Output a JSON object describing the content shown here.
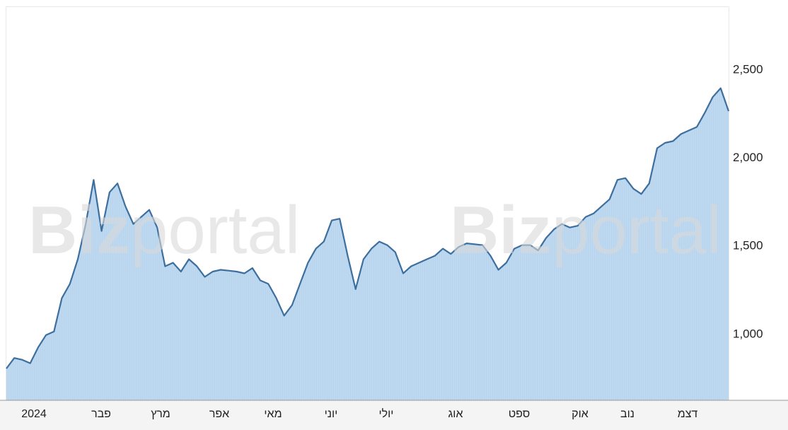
{
  "watermark": {
    "bold": "Biz",
    "rest": "portal"
  },
  "colors": {
    "line": "#3d6f9e",
    "fill": "#b6d4ee",
    "grid": "#c8c8c8",
    "axis": "#999999"
  },
  "chart_data": {
    "type": "area",
    "title": "",
    "xlabel": "",
    "ylabel": "",
    "ylim": [
      620,
      2850
    ],
    "grid": true,
    "y_ticks": [
      1000,
      1500,
      2000,
      2500
    ],
    "y_tick_labels": [
      "1,000",
      "1,500",
      "2,000",
      "2,500"
    ],
    "x_tick_labels": [
      "2024",
      "פבר",
      "מרץ",
      "אפר",
      "מאי",
      "יוני",
      "יולי",
      "אוג",
      "ספט",
      "אוק",
      "נוב",
      "דצמ"
    ],
    "x": [
      0,
      4,
      8,
      12,
      16,
      20,
      24,
      28,
      32,
      36,
      40,
      44,
      48,
      52,
      56,
      60,
      64,
      68,
      72,
      76,
      80,
      84,
      88,
      92,
      96,
      100,
      104,
      108,
      112,
      116,
      120,
      124,
      128,
      132,
      136,
      140,
      144,
      148,
      152,
      156,
      160,
      164,
      168,
      172,
      176,
      180,
      184,
      188,
      192,
      196,
      200,
      204,
      208,
      212,
      216,
      220,
      224,
      228,
      232,
      236,
      240,
      244,
      248,
      252,
      256,
      260,
      264,
      268,
      272,
      276,
      280,
      284,
      288,
      292,
      296,
      300,
      304,
      308,
      312,
      316,
      320,
      324,
      328,
      332,
      336,
      340,
      344,
      348,
      352,
      356,
      360,
      364
    ],
    "values": [
      800,
      860,
      850,
      830,
      920,
      990,
      1010,
      1200,
      1280,
      1420,
      1620,
      1870,
      1580,
      1800,
      1850,
      1720,
      1620,
      1660,
      1700,
      1600,
      1380,
      1400,
      1350,
      1420,
      1380,
      1320,
      1350,
      1360,
      1355,
      1350,
      1340,
      1370,
      1300,
      1280,
      1200,
      1100,
      1160,
      1280,
      1400,
      1480,
      1520,
      1640,
      1650,
      1440,
      1250,
      1420,
      1480,
      1520,
      1500,
      1460,
      1340,
      1380,
      1400,
      1420,
      1440,
      1480,
      1450,
      1490,
      1510,
      1505,
      1500,
      1440,
      1360,
      1400,
      1480,
      1500,
      1500,
      1470,
      1540,
      1590,
      1620,
      1600,
      1610,
      1660,
      1680,
      1720,
      1760,
      1870,
      1880,
      1820,
      1790,
      1850,
      2050,
      2080,
      2090,
      2130,
      2150,
      2170,
      2250,
      2340,
      2390,
      2260
    ]
  }
}
